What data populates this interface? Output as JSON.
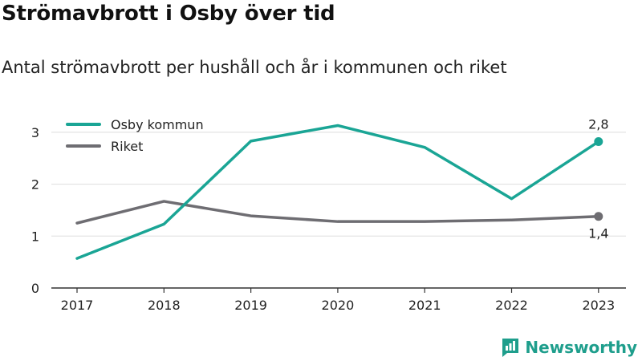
{
  "header": {
    "title": "Strömavbrott i Osby över tid",
    "subtitle": "Antal strömavbrott per hushåll och år i kommunen och riket"
  },
  "colors": {
    "osby": "#1aa595",
    "riket": "#6e6d72",
    "axis": "#333333",
    "grid": "#dddddd",
    "brand": "#1e9e8c"
  },
  "brand": {
    "logo_text": "Newsworthy",
    "icon": "chart-logo-icon"
  },
  "chart_data": {
    "type": "line",
    "categories": [
      "2017",
      "2018",
      "2019",
      "2020",
      "2021",
      "2022",
      "2023"
    ],
    "series": [
      {
        "name": "Osby kommun",
        "values": [
          0.57,
          1.23,
          2.83,
          3.13,
          2.71,
          1.72,
          2.82
        ],
        "end_label": "2,8"
      },
      {
        "name": "Riket",
        "values": [
          1.25,
          1.67,
          1.39,
          1.28,
          1.28,
          1.31,
          1.38
        ],
        "end_label": "1,4"
      }
    ],
    "yticks": [
      "0",
      "1",
      "2",
      "3"
    ],
    "ylim": [
      0,
      3.3
    ],
    "grid": true,
    "legend": "top-left"
  }
}
